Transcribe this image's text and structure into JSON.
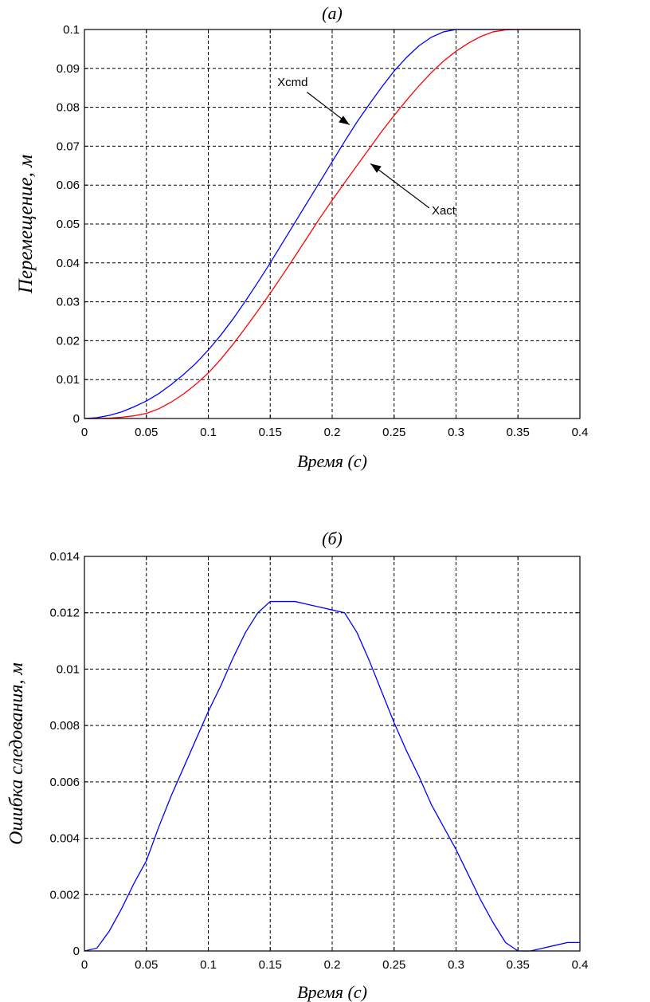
{
  "chart_data": [
    {
      "type": "line",
      "title": "(а)",
      "xlabel": "Время (с)",
      "ylabel": "Перемещение, м",
      "xlim": [
        0,
        0.4
      ],
      "ylim": [
        0,
        0.1
      ],
      "xticks": [
        "0",
        "0.05",
        "0.1",
        "0.15",
        "0.2",
        "0.25",
        "0.3",
        "0.35",
        "0.4"
      ],
      "yticks": [
        "0",
        "0.01",
        "0.02",
        "0.03",
        "0.04",
        "0.05",
        "0.06",
        "0.07",
        "0.08",
        "0.09",
        "0.1"
      ],
      "grid": true,
      "series": [
        {
          "name": "Xcmd",
          "color": "#0000ff",
          "x": [
            0,
            0.01,
            0.02,
            0.03,
            0.04,
            0.05,
            0.06,
            0.07,
            0.08,
            0.09,
            0.1,
            0.11,
            0.12,
            0.13,
            0.14,
            0.15,
            0.16,
            0.17,
            0.18,
            0.19,
            0.2,
            0.21,
            0.22,
            0.23,
            0.24,
            0.25,
            0.26,
            0.27,
            0.28,
            0.29,
            0.3,
            0.31,
            0.32,
            0.33,
            0.34,
            0.35,
            0.36,
            0.37,
            0.38,
            0.39,
            0.4
          ],
          "y": [
            0,
            0.0002,
            0.0008,
            0.0017,
            0.003,
            0.0045,
            0.0064,
            0.0087,
            0.0113,
            0.0142,
            0.0176,
            0.0214,
            0.0256,
            0.0302,
            0.035,
            0.04,
            0.0452,
            0.0504,
            0.0556,
            0.0608,
            0.066,
            0.0712,
            0.0762,
            0.0808,
            0.0852,
            0.0893,
            0.0928,
            0.0958,
            0.098,
            0.0994,
            0.1,
            0.1,
            0.1,
            0.1,
            0.1,
            0.1,
            0.1,
            0.1,
            0.1,
            0.1,
            0.1
          ]
        },
        {
          "name": "Xact",
          "color": "#ff0000",
          "x": [
            0,
            0.01,
            0.02,
            0.03,
            0.04,
            0.05,
            0.06,
            0.07,
            0.08,
            0.09,
            0.1,
            0.11,
            0.12,
            0.13,
            0.14,
            0.15,
            0.16,
            0.17,
            0.18,
            0.19,
            0.2,
            0.21,
            0.22,
            0.23,
            0.24,
            0.25,
            0.26,
            0.27,
            0.28,
            0.29,
            0.3,
            0.31,
            0.32,
            0.33,
            0.34,
            0.35,
            0.36,
            0.37,
            0.38,
            0.39,
            0.4
          ],
          "y": [
            0,
            0,
            0.0001,
            0.0003,
            0.0007,
            0.0013,
            0.0025,
            0.0042,
            0.0063,
            0.0088,
            0.0117,
            0.0152,
            0.0191,
            0.0233,
            0.0277,
            0.0322,
            0.0369,
            0.0417,
            0.0466,
            0.0515,
            0.0561,
            0.0606,
            0.065,
            0.0694,
            0.0738,
            0.0779,
            0.0818,
            0.0855,
            0.0889,
            0.0919,
            0.0944,
            0.0965,
            0.0982,
            0.0994,
            0.0999,
            0.1,
            0.1,
            0.1,
            0.1,
            0.1,
            0.1
          ]
        }
      ],
      "annotations": [
        {
          "text": "Xcmd",
          "x": 0.168,
          "y": 0.0855,
          "arrow_to": [
            0.214,
            0.0755
          ]
        },
        {
          "text": "Xact",
          "x": 0.29,
          "y": 0.0525,
          "arrow_to": [
            0.231,
            0.0655
          ]
        }
      ]
    },
    {
      "type": "line",
      "title": "(б)",
      "xlabel": "Время (с)",
      "ylabel": "Ошибка следования, м",
      "xlim": [
        0,
        0.4
      ],
      "ylim": [
        0,
        0.014
      ],
      "xticks": [
        "0",
        "0.05",
        "0.1",
        "0.15",
        "0.2",
        "0.25",
        "0.3",
        "0.35",
        "0.4"
      ],
      "yticks": [
        "0",
        "0.002",
        "0.004",
        "0.006",
        "0.008",
        "0.01",
        "0.012",
        "0.014"
      ],
      "grid": true,
      "series": [
        {
          "color": "#0000ff",
          "x": [
            0,
            0.01,
            0.02,
            0.03,
            0.04,
            0.05,
            0.06,
            0.07,
            0.08,
            0.09,
            0.1,
            0.11,
            0.12,
            0.13,
            0.14,
            0.15,
            0.16,
            0.17,
            0.18,
            0.19,
            0.2,
            0.21,
            0.22,
            0.23,
            0.24,
            0.25,
            0.26,
            0.27,
            0.28,
            0.29,
            0.3,
            0.31,
            0.32,
            0.33,
            0.34,
            0.35,
            0.36,
            0.37,
            0.38,
            0.39,
            0.4
          ],
          "y": [
            0,
            0.0001,
            0.0007,
            0.0015,
            0.0024,
            0.0032,
            0.0044,
            0.0055,
            0.0065,
            0.0075,
            0.0085,
            0.0094,
            0.0104,
            0.0113,
            0.012,
            0.0124,
            0.0124,
            0.0124,
            0.0123,
            0.0122,
            0.0121,
            0.012,
            0.0113,
            0.0103,
            0.0092,
            0.0081,
            0.0071,
            0.0062,
            0.0052,
            0.0044,
            0.0036,
            0.0027,
            0.0018,
            0.001,
            0.0003,
            0,
            0,
            0.0001,
            0.0002,
            0.0003,
            0.0003
          ]
        }
      ]
    }
  ]
}
